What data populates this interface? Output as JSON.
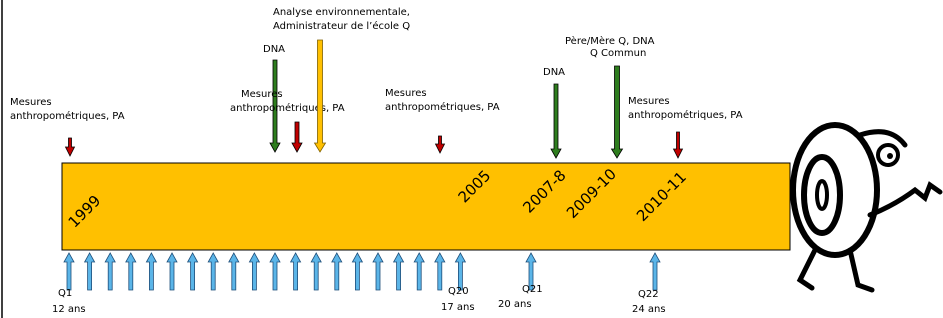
{
  "timeline": {
    "years": [
      "1999",
      "2005",
      "2007-8",
      "2009-10",
      "2010-11"
    ]
  },
  "top_annotations": [
    {
      "lines": [
        "Mesures",
        "anthropométriques, PA"
      ]
    },
    {
      "lines": [
        "DNA"
      ]
    },
    {
      "lines": [
        "Mesures",
        "anthropométriques, PA"
      ]
    },
    {
      "lines": [
        "Analyse environnementale,",
        "Administrateur de l’école Q"
      ]
    },
    {
      "lines": [
        "Mesures",
        "anthropométriques, PA"
      ]
    },
    {
      "lines": [
        "DNA"
      ]
    },
    {
      "lines": [
        "Père/Mère Q, DNA",
        "Q Commun"
      ]
    },
    {
      "lines": [
        "Mesures",
        "anthropométriques, PA"
      ]
    }
  ],
  "bottom_labels": [
    {
      "question": "Q1",
      "age": "12 ans"
    },
    {
      "question": "Q20",
      "age": "17 ans"
    },
    {
      "question": "Q21",
      "age": "20 ans"
    },
    {
      "question": "Q22",
      "age": "24 ans"
    }
  ]
}
